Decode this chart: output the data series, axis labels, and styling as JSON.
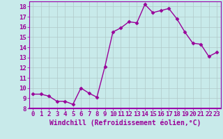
{
  "x": [
    0,
    1,
    2,
    3,
    4,
    5,
    6,
    7,
    8,
    9,
    10,
    11,
    12,
    13,
    14,
    15,
    16,
    17,
    18,
    19,
    20,
    21,
    22,
    23
  ],
  "y": [
    9.4,
    9.4,
    9.2,
    8.7,
    8.7,
    8.4,
    10.0,
    9.5,
    9.1,
    12.1,
    15.5,
    15.9,
    16.5,
    16.4,
    18.2,
    17.4,
    17.6,
    17.8,
    16.8,
    15.5,
    14.4,
    14.3,
    13.1,
    13.5
  ],
  "line_color": "#990099",
  "marker": "D",
  "marker_size": 2.5,
  "bg_color": "#c8eaea",
  "grid_color": "#b0c8c8",
  "xlabel": "Windchill (Refroidissement éolien,°C)",
  "ylim": [
    8,
    18.5
  ],
  "xlim": [
    -0.5,
    23.5
  ],
  "yticks": [
    8,
    9,
    10,
    11,
    12,
    13,
    14,
    15,
    16,
    17,
    18
  ],
  "xticks": [
    0,
    1,
    2,
    3,
    4,
    5,
    6,
    7,
    8,
    9,
    10,
    11,
    12,
    13,
    14,
    15,
    16,
    17,
    18,
    19,
    20,
    21,
    22,
    23
  ],
  "xlabel_fontsize": 7.0,
  "tick_fontsize": 6.5,
  "line_width": 1.0,
  "spine_color": "#9900aa"
}
